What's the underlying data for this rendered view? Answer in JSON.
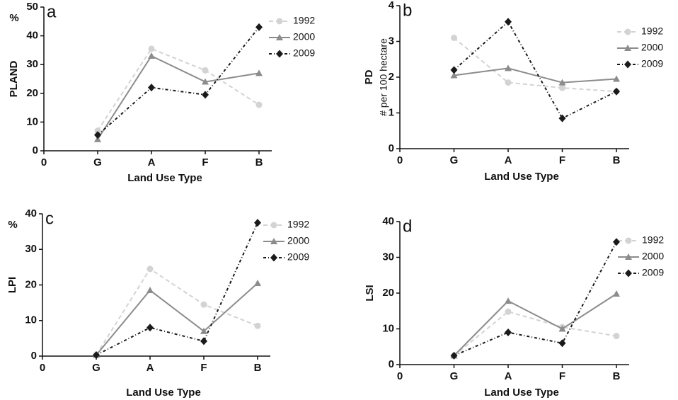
{
  "chart_data": [
    {
      "type": "line",
      "panel_label": "a",
      "unit": "%",
      "ylabel": "PLAND",
      "xlabel": "Land Use Type",
      "categories": [
        "0",
        "G",
        "A",
        "F",
        "B"
      ],
      "ylim": [
        0,
        50
      ],
      "yticks": [
        0,
        10,
        20,
        30,
        40,
        50
      ],
      "series": [
        {
          "name": "1992",
          "color": "#d3d3d3",
          "marker": "circle",
          "dash": "6,4",
          "values": [
            null,
            7,
            35.5,
            28,
            16
          ]
        },
        {
          "name": "2000",
          "color": "#8c8c8c",
          "marker": "triangle",
          "dash": "none",
          "values": [
            null,
            4,
            33,
            24,
            27
          ]
        },
        {
          "name": "2009",
          "color": "#1a1a1a",
          "marker": "diamond",
          "dash": "4,3,1,3",
          "values": [
            null,
            5.5,
            22,
            19.5,
            43
          ]
        }
      ]
    },
    {
      "type": "line",
      "panel_label": "b",
      "unit": "# per 100 hectare",
      "ylabel": "PD",
      "xlabel": "Land Use Type",
      "categories": [
        "0",
        "G",
        "A",
        "F",
        "B"
      ],
      "ylim": [
        0,
        4
      ],
      "yticks": [
        0,
        1,
        2,
        3,
        4
      ],
      "series": [
        {
          "name": "1992",
          "color": "#d3d3d3",
          "marker": "circle",
          "dash": "6,4",
          "values": [
            null,
            3.1,
            1.85,
            1.7,
            1.6
          ]
        },
        {
          "name": "2000",
          "color": "#8c8c8c",
          "marker": "triangle",
          "dash": "none",
          "values": [
            null,
            2.05,
            2.25,
            1.85,
            1.95
          ]
        },
        {
          "name": "2009",
          "color": "#1a1a1a",
          "marker": "diamond",
          "dash": "4,3,1,3",
          "values": [
            null,
            2.2,
            3.55,
            0.85,
            1.6
          ]
        }
      ]
    },
    {
      "type": "line",
      "panel_label": "c",
      "unit": "%",
      "ylabel": "LPI",
      "xlabel": "Land Use Type",
      "categories": [
        "0",
        "G",
        "A",
        "F",
        "B"
      ],
      "ylim": [
        0,
        40
      ],
      "yticks": [
        0,
        10,
        20,
        30,
        40
      ],
      "series": [
        {
          "name": "1992",
          "color": "#d3d3d3",
          "marker": "circle",
          "dash": "6,4",
          "values": [
            null,
            0.3,
            24.5,
            14.5,
            8.5
          ]
        },
        {
          "name": "2000",
          "color": "#8c8c8c",
          "marker": "triangle",
          "dash": "none",
          "values": [
            null,
            0.3,
            18.5,
            7,
            20.5
          ]
        },
        {
          "name": "2009",
          "color": "#1a1a1a",
          "marker": "diamond",
          "dash": "4,3,1,3",
          "values": [
            null,
            0.3,
            8,
            4.2,
            37.5
          ]
        }
      ]
    },
    {
      "type": "line",
      "panel_label": "d",
      "ylabel": "LSI",
      "xlabel": "Land Use Type",
      "categories": [
        "0",
        "G",
        "A",
        "F",
        "B"
      ],
      "ylim": [
        0,
        40
      ],
      "yticks": [
        0,
        10,
        20,
        30,
        40
      ],
      "series": [
        {
          "name": "1992",
          "color": "#d3d3d3",
          "marker": "circle",
          "dash": "6,4",
          "values": [
            null,
            2.5,
            14.8,
            10.5,
            8
          ]
        },
        {
          "name": "2000",
          "color": "#8c8c8c",
          "marker": "triangle",
          "dash": "none",
          "values": [
            null,
            2.5,
            17.8,
            10,
            19.8
          ]
        },
        {
          "name": "2009",
          "color": "#1a1a1a",
          "marker": "diamond",
          "dash": "4,3,1,3",
          "values": [
            null,
            2.5,
            9,
            6,
            34.3
          ]
        }
      ]
    }
  ]
}
